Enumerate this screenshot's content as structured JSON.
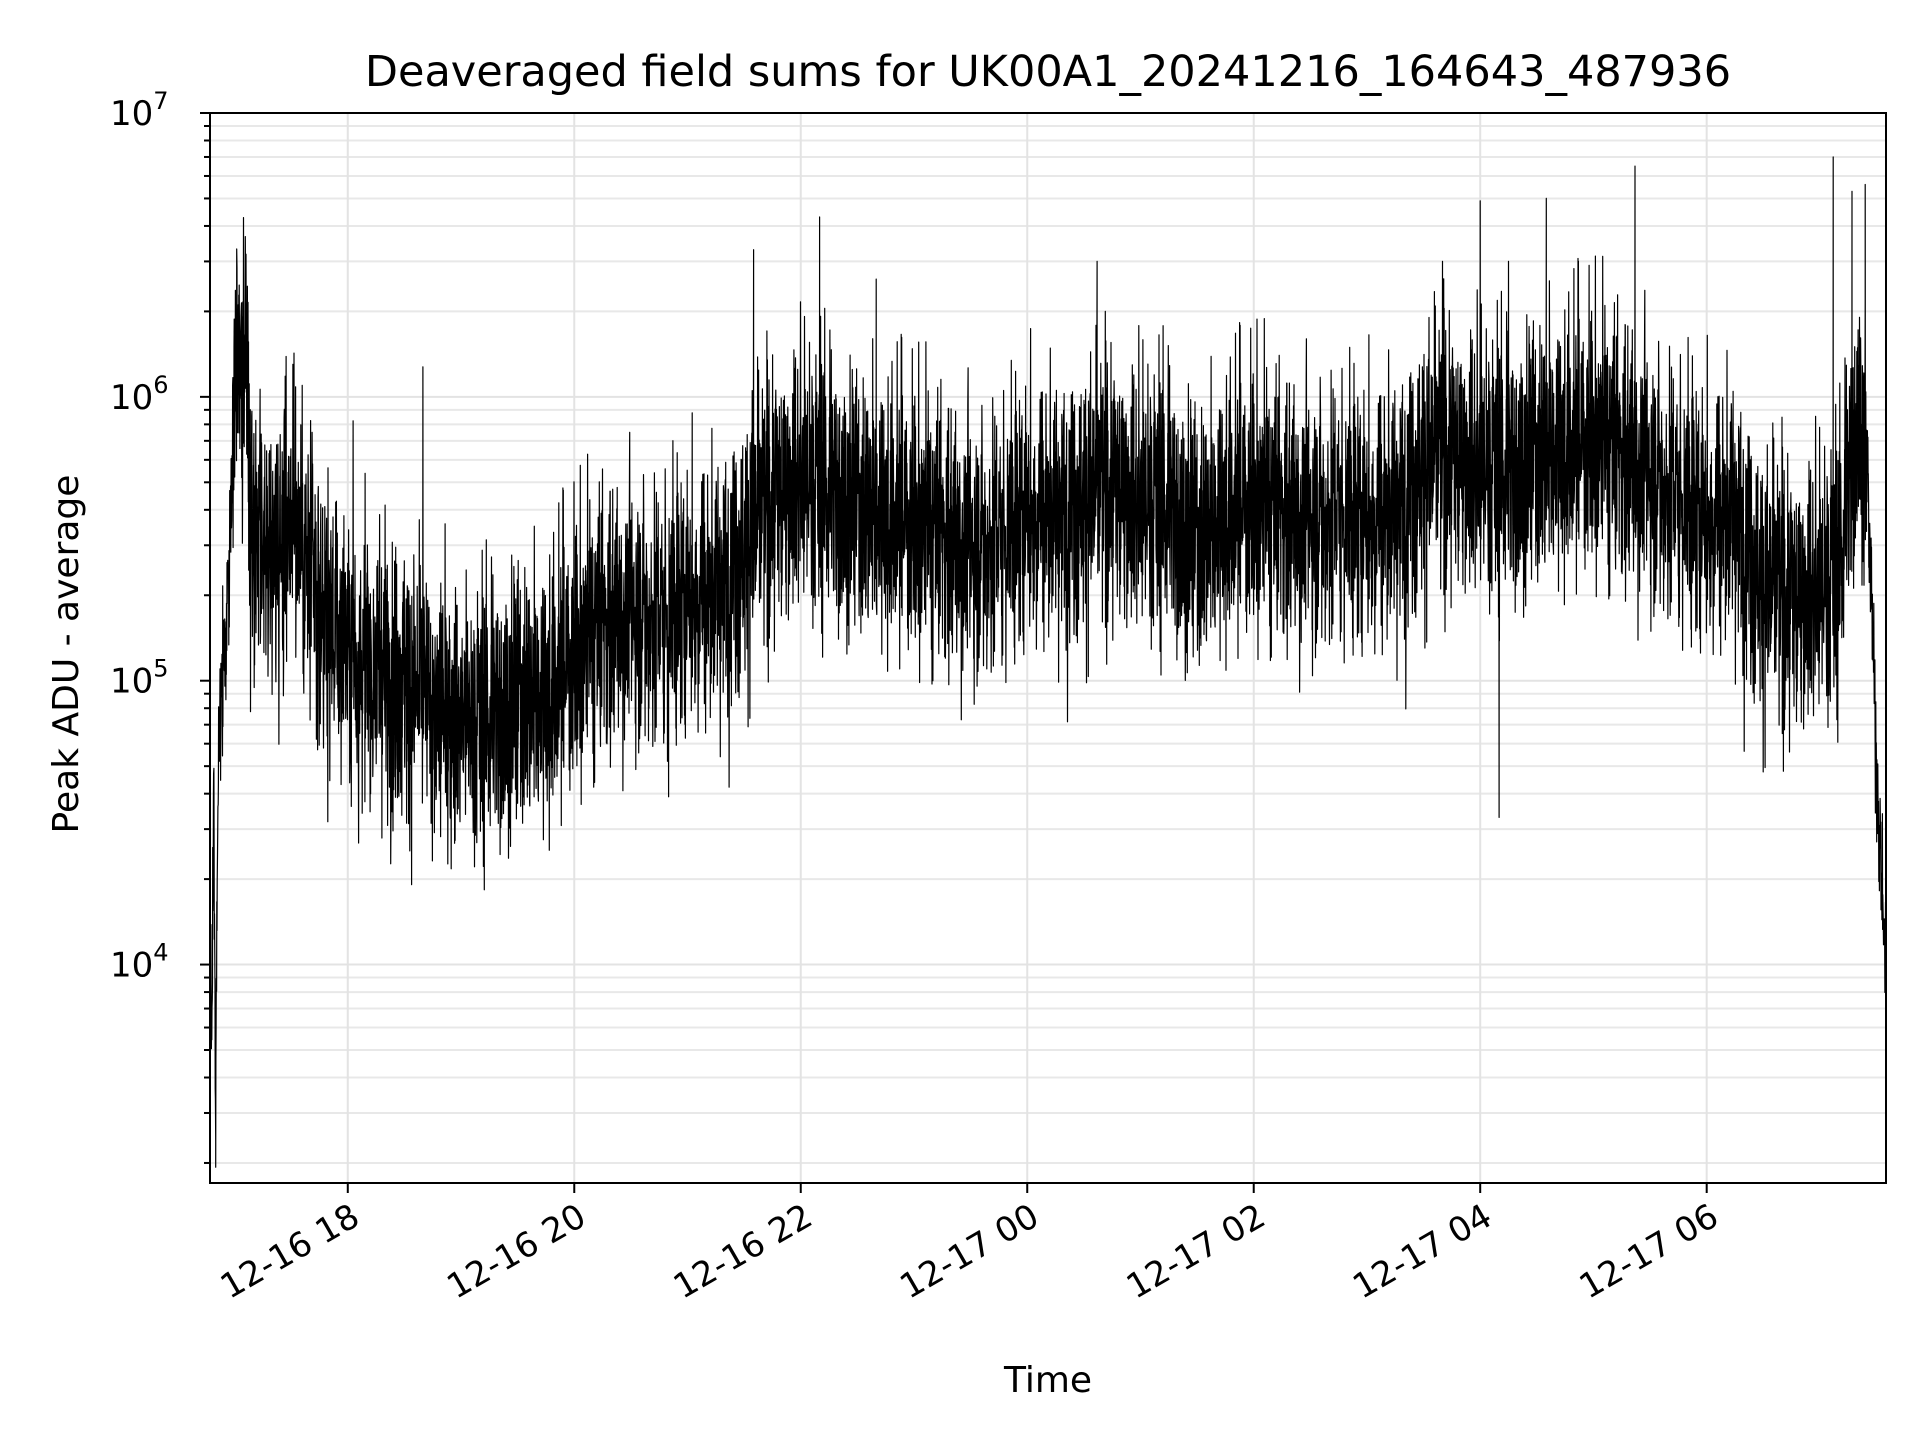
{
  "chart_data": {
    "type": "line",
    "title": "Deaveraged field sums for UK00A1_20241216_164643_487936",
    "xlabel": "Time",
    "ylabel": "Peak ADU - average",
    "yscale": "log",
    "ylim": [
      1700,
      10000000
    ],
    "xlim": [
      "2024-12-16 16:47",
      "2024-12-17 07:35"
    ],
    "grid": true,
    "line_color": "#000000",
    "x_ticks": [
      {
        "value": "2024-12-16 18:00",
        "label": "12-16 18"
      },
      {
        "value": "2024-12-16 20:00",
        "label": "12-16 20"
      },
      {
        "value": "2024-12-16 22:00",
        "label": "12-16 22"
      },
      {
        "value": "2024-12-17 00:00",
        "label": "12-17 00"
      },
      {
        "value": "2024-12-17 02:00",
        "label": "12-17 02"
      },
      {
        "value": "2024-12-17 04:00",
        "label": "12-17 04"
      },
      {
        "value": "2024-12-17 06:00",
        "label": "12-17 06"
      }
    ],
    "y_ticks": [
      {
        "value": 10000,
        "base": "10",
        "exp": "4"
      },
      {
        "value": 100000,
        "base": "10",
        "exp": "5"
      },
      {
        "value": 1000000,
        "base": "10",
        "exp": "6"
      },
      {
        "value": 10000000,
        "base": "10",
        "exp": "7"
      }
    ],
    "series": [
      {
        "points": [
          [
            "2024-12-16 16:47",
            12000
          ],
          [
            "2024-12-16 16:48",
            6000
          ],
          [
            "2024-12-16 16:49",
            45000
          ],
          [
            "2024-12-16 16:50",
            2500
          ],
          [
            "2024-12-16 16:51",
            28000
          ],
          [
            "2024-12-16 16:52",
            85000
          ],
          [
            "2024-12-16 16:55",
            120000
          ],
          [
            "2024-12-16 16:58",
            400000
          ],
          [
            "2024-12-16 17:00",
            1000000
          ],
          [
            "2024-12-16 17:02",
            2400000
          ],
          [
            "2024-12-16 17:04",
            900000
          ],
          [
            "2024-12-16 17:06",
            2200000
          ],
          [
            "2024-12-16 17:08",
            350000
          ],
          [
            "2024-12-16 17:15",
            250000
          ],
          [
            "2024-12-16 17:30",
            400000
          ],
          [
            "2024-12-16 17:45",
            180000
          ],
          [
            "2024-12-16 18:00",
            130000
          ],
          [
            "2024-12-16 18:15",
            110000
          ],
          [
            "2024-12-16 18:30",
            100000
          ],
          [
            "2024-12-16 18:45",
            80000
          ],
          [
            "2024-12-16 19:00",
            75000
          ],
          [
            "2024-12-16 19:15",
            75000
          ],
          [
            "2024-12-16 19:30",
            85000
          ],
          [
            "2024-12-16 19:45",
            85000
          ],
          [
            "2024-12-16 20:00",
            120000
          ],
          [
            "2024-12-16 20:15",
            160000
          ],
          [
            "2024-12-16 20:30",
            180000
          ],
          [
            "2024-12-16 20:45",
            170000
          ],
          [
            "2024-12-16 21:00",
            200000
          ],
          [
            "2024-12-16 21:15",
            220000
          ],
          [
            "2024-12-16 21:30",
            300000
          ],
          [
            "2024-12-16 21:45",
            450000
          ],
          [
            "2024-12-16 22:00",
            550000
          ],
          [
            "2024-12-16 22:15",
            480000
          ],
          [
            "2024-12-16 22:30",
            400000
          ],
          [
            "2024-12-16 22:45",
            380000
          ],
          [
            "2024-12-16 23:00",
            350000
          ],
          [
            "2024-12-16 23:15",
            330000
          ],
          [
            "2024-12-16 23:30",
            300000
          ],
          [
            "2024-12-16 23:45",
            320000
          ],
          [
            "2024-12-17 00:00",
            400000
          ],
          [
            "2024-12-17 00:15",
            420000
          ],
          [
            "2024-12-17 00:30",
            450000
          ],
          [
            "2024-12-17 00:45",
            500000
          ],
          [
            "2024-12-17 01:00",
            450000
          ],
          [
            "2024-12-17 01:15",
            420000
          ],
          [
            "2024-12-17 01:30",
            300000
          ],
          [
            "2024-12-17 01:45",
            380000
          ],
          [
            "2024-12-17 02:00",
            420000
          ],
          [
            "2024-12-17 02:15",
            400000
          ],
          [
            "2024-12-17 02:30",
            380000
          ],
          [
            "2024-12-17 02:45",
            400000
          ],
          [
            "2024-12-17 03:00",
            380000
          ],
          [
            "2024-12-17 03:15",
            420000
          ],
          [
            "2024-12-17 03:30",
            600000
          ],
          [
            "2024-12-17 03:45",
            650000
          ],
          [
            "2024-12-17 04:00",
            600000
          ],
          [
            "2024-12-17 04:15",
            550000
          ],
          [
            "2024-12-17 04:30",
            600000
          ],
          [
            "2024-12-17 04:45",
            650000
          ],
          [
            "2024-12-17 05:00",
            700000
          ],
          [
            "2024-12-17 05:15",
            650000
          ],
          [
            "2024-12-17 05:30",
            550000
          ],
          [
            "2024-12-17 05:45",
            450000
          ],
          [
            "2024-12-17 06:00",
            380000
          ],
          [
            "2024-12-17 06:15",
            420000
          ],
          [
            "2024-12-17 06:30",
            220000
          ],
          [
            "2024-12-17 06:45",
            200000
          ],
          [
            "2024-12-17 07:00",
            220000
          ],
          [
            "2024-12-17 07:10",
            250000
          ],
          [
            "2024-12-17 07:20",
            900000
          ],
          [
            "2024-12-17 07:25",
            600000
          ],
          [
            "2024-12-17 07:30",
            50000
          ],
          [
            "2024-12-17 07:35",
            9000
          ]
        ],
        "peaks": [
          [
            "2024-12-16 21:35",
            3300000
          ],
          [
            "2024-12-16 22:10",
            4300000
          ],
          [
            "2024-12-16 22:40",
            2600000
          ],
          [
            "2024-12-17 00:37",
            3000000
          ],
          [
            "2024-12-17 03:40",
            3000000
          ],
          [
            "2024-12-17 04:00",
            4900000
          ],
          [
            "2024-12-17 04:15",
            3000000
          ],
          [
            "2024-12-17 04:35",
            5000000
          ],
          [
            "2024-12-17 05:22",
            6500000
          ],
          [
            "2024-12-17 07:07",
            7000000
          ],
          [
            "2024-12-17 07:17",
            5300000
          ],
          [
            "2024-12-17 07:24",
            5600000
          ]
        ],
        "troughs": [
          [
            "2024-12-16 16:50",
            2400
          ],
          [
            "2024-12-16 19:30",
            37000
          ],
          [
            "2024-12-16 20:50",
            39000
          ],
          [
            "2024-12-17 04:10",
            33000
          ]
        ]
      }
    ]
  }
}
